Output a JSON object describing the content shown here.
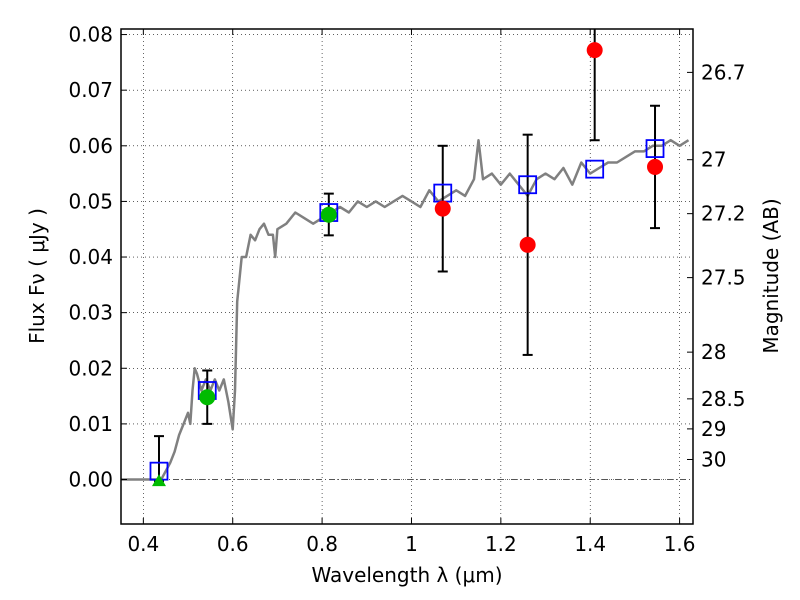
{
  "chart_data": {
    "type": "scatter",
    "title": "",
    "xlabel": "Wavelength  λ (μm)",
    "ylabel": "Flux  Fν  ( μJy )",
    "ylabel_right": "Magnitude (AB)",
    "xlim": [
      0.35,
      1.63
    ],
    "ylim": [
      -0.008,
      0.081
    ],
    "grid": true,
    "legend": "none",
    "x_ticks": [
      {
        "value": 0.4,
        "label": "0.4"
      },
      {
        "value": 0.6,
        "label": "0.6"
      },
      {
        "value": 0.8,
        "label": "0.8"
      },
      {
        "value": 1.0,
        "label": "1"
      },
      {
        "value": 1.2,
        "label": "1.2"
      },
      {
        "value": 1.4,
        "label": "1.4"
      },
      {
        "value": 1.6,
        "label": "1.6"
      }
    ],
    "y_ticks": [
      {
        "value": 0.0,
        "label": "0.00"
      },
      {
        "value": 0.01,
        "label": "0.01"
      },
      {
        "value": 0.02,
        "label": "0.02"
      },
      {
        "value": 0.03,
        "label": "0.03"
      },
      {
        "value": 0.04,
        "label": "0.04"
      },
      {
        "value": 0.05,
        "label": "0.05"
      },
      {
        "value": 0.06,
        "label": "0.06"
      },
      {
        "value": 0.07,
        "label": "0.07"
      },
      {
        "value": 0.08,
        "label": "0.08"
      }
    ],
    "magnitude_ticks": [
      {
        "flux": 0.0732,
        "label": "26.7"
      },
      {
        "flux": 0.0575,
        "label": "27"
      },
      {
        "flux": 0.0478,
        "label": "27.2"
      },
      {
        "flux": 0.0363,
        "label": "27.5"
      },
      {
        "flux": 0.0229,
        "label": "28"
      },
      {
        "flux": 0.0145,
        "label": "28.5"
      },
      {
        "flux": 0.0091,
        "label": "29"
      },
      {
        "flux": 0.0036,
        "label": "30"
      }
    ],
    "model_spectrum": {
      "color": "#808080",
      "x": [
        0.35,
        0.4,
        0.44,
        0.45,
        0.46,
        0.47,
        0.48,
        0.49,
        0.5,
        0.505,
        0.51,
        0.515,
        0.52,
        0.53,
        0.54,
        0.55,
        0.56,
        0.565,
        0.57,
        0.58,
        0.59,
        0.6,
        0.605,
        0.61,
        0.62,
        0.63,
        0.64,
        0.65,
        0.66,
        0.67,
        0.68,
        0.69,
        0.695,
        0.7,
        0.72,
        0.74,
        0.76,
        0.78,
        0.8,
        0.82,
        0.84,
        0.86,
        0.88,
        0.9,
        0.92,
        0.94,
        0.96,
        0.98,
        1.0,
        1.02,
        1.04,
        1.06,
        1.08,
        1.1,
        1.12,
        1.14,
        1.15,
        1.16,
        1.18,
        1.2,
        1.22,
        1.24,
        1.26,
        1.28,
        1.3,
        1.32,
        1.34,
        1.36,
        1.38,
        1.4,
        1.42,
        1.44,
        1.46,
        1.48,
        1.5,
        1.52,
        1.54,
        1.56,
        1.58,
        1.6,
        1.62
      ],
      "y": [
        0.0,
        0.0,
        0.0,
        0.0015,
        0.003,
        0.005,
        0.008,
        0.01,
        0.012,
        0.01,
        0.016,
        0.02,
        0.019,
        0.016,
        0.018,
        0.016,
        0.018,
        0.017,
        0.016,
        0.018,
        0.014,
        0.009,
        0.016,
        0.032,
        0.04,
        0.04,
        0.044,
        0.043,
        0.045,
        0.046,
        0.044,
        0.044,
        0.04,
        0.045,
        0.046,
        0.048,
        0.047,
        0.046,
        0.047,
        0.048,
        0.049,
        0.048,
        0.05,
        0.049,
        0.05,
        0.049,
        0.05,
        0.051,
        0.05,
        0.049,
        0.052,
        0.05,
        0.051,
        0.052,
        0.051,
        0.054,
        0.061,
        0.054,
        0.055,
        0.053,
        0.055,
        0.053,
        0.051,
        0.054,
        0.055,
        0.054,
        0.056,
        0.053,
        0.057,
        0.055,
        0.056,
        0.057,
        0.057,
        0.058,
        0.059,
        0.059,
        0.06,
        0.06,
        0.061,
        0.06,
        0.061
      ]
    },
    "series": [
      {
        "marker": "open-square",
        "color": "#0000ff",
        "points": [
          {
            "x": 0.435,
            "y": 0.0015
          },
          {
            "x": 0.543,
            "y": 0.016
          },
          {
            "x": 0.815,
            "y": 0.048
          },
          {
            "x": 1.07,
            "y": 0.0515
          },
          {
            "x": 1.26,
            "y": 0.053
          },
          {
            "x": 1.41,
            "y": 0.0558
          },
          {
            "x": 1.545,
            "y": 0.0595
          }
        ]
      },
      {
        "marker": "filled-circle",
        "color": "#00bb00",
        "points": [
          {
            "x": 0.543,
            "y": 0.0148,
            "yerr_low": 0.0048,
            "yerr_high": 0.0048
          },
          {
            "x": 0.815,
            "y": 0.0476,
            "yerr_low": 0.0037,
            "yerr_high": 0.0038
          }
        ]
      },
      {
        "marker": "triangle-up",
        "color": "#00bb00",
        "points": [
          {
            "x": 0.435,
            "y": -0.0003,
            "yerr_low": 0.0,
            "yerr_high": 0.0081
          }
        ]
      },
      {
        "marker": "filled-circle",
        "color": "#ff0000",
        "points": [
          {
            "x": 1.07,
            "y": 0.0487,
            "yerr_low": 0.0113,
            "yerr_high": 0.0113
          },
          {
            "x": 1.26,
            "y": 0.0422,
            "yerr_low": 0.0198,
            "yerr_high": 0.0198
          },
          {
            "x": 1.41,
            "y": 0.0772,
            "yerr_low": 0.0162,
            "yerr_high": 0.0162
          },
          {
            "x": 1.545,
            "y": 0.0562,
            "yerr_low": 0.011,
            "yerr_high": 0.011
          }
        ]
      }
    ]
  }
}
